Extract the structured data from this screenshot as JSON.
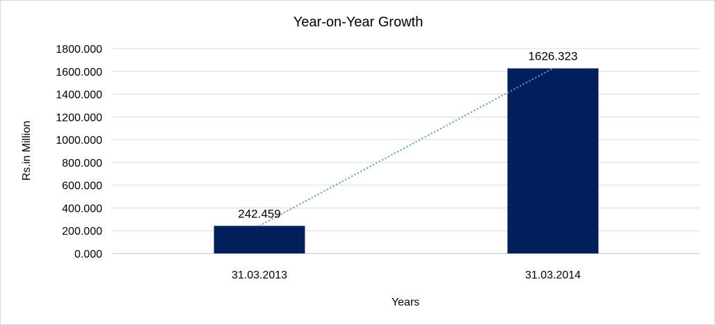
{
  "chart_data": {
    "type": "bar",
    "title": "Year-on-Year Growth",
    "xlabel": "Years",
    "ylabel": "Rs.in Million",
    "categories": [
      "31.03.2013",
      "31.03.2014"
    ],
    "values": [
      242.459,
      1626.323
    ],
    "data_labels": [
      "242.459",
      "1626.323"
    ],
    "ylim": [
      0,
      1800
    ],
    "yticks": [
      0,
      200,
      400,
      600,
      800,
      1000,
      1200,
      1400,
      1600,
      1800
    ],
    "ytick_labels": [
      "0.000",
      "200.000",
      "400.000",
      "600.000",
      "800.000",
      "1000.000",
      "1200.000",
      "1400.000",
      "1600.000",
      "1800.000"
    ],
    "grid": true,
    "legend": "none",
    "trendline": "linear",
    "colors": {
      "bar": "#001f5b",
      "trendline": "#5b9bd5",
      "grid": "#d9d9d9",
      "axis": "#bfbfbf"
    }
  }
}
